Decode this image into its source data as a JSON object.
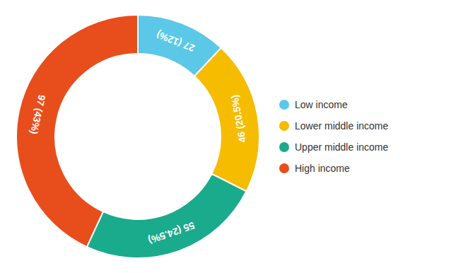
{
  "chart_data": {
    "type": "donut",
    "categories": [
      "Low income",
      "Lower middle income",
      "Upper middle income",
      "High income"
    ],
    "values": [
      27,
      46,
      55,
      97
    ],
    "value_labels": [
      "27 (12%)",
      "46 (20.5%)",
      "55 (24.5%)",
      "97 (43%)"
    ],
    "colors": [
      "#5bc8e8",
      "#f5bc00",
      "#1aaa8c",
      "#e84e1b"
    ],
    "data_labels": true,
    "legend": "right"
  }
}
